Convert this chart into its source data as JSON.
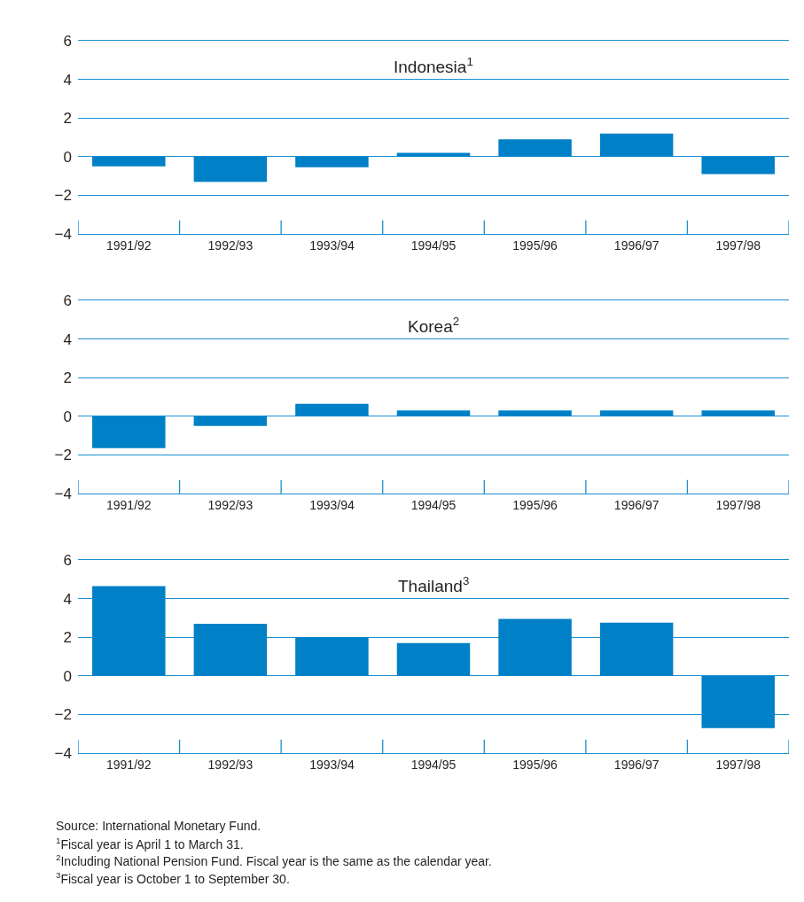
{
  "chart_data": [
    {
      "type": "bar",
      "title": "Indonesia$^{1}$",
      "categories": [
        "1991/92",
        "1992/93",
        "1993/94",
        "1994/95",
        "1995/96",
        "1996/97",
        "1997/98"
      ],
      "values": [
        -0.5,
        -1.3,
        -0.55,
        0.2,
        0.9,
        1.2,
        -0.9
      ],
      "color": "#0080c6",
      "ylim": [
        -4,
        6
      ],
      "yticks": [
        -4,
        -2,
        0,
        2,
        4,
        6
      ],
      "grid": "y"
    },
    {
      "type": "bar",
      "title": "Korea$^{2}$",
      "categories": [
        "1991/92",
        "1992/93",
        "1993/94",
        "1994/95",
        "1995/96",
        "1996/97",
        "1997/98"
      ],
      "values": [
        -1.65,
        -0.5,
        0.65,
        0.3,
        0.3,
        0.3,
        0.3
      ],
      "color": "#0080c6",
      "ylim": [
        -4,
        6
      ],
      "yticks": [
        -4,
        -2,
        0,
        2,
        4,
        6
      ],
      "grid": "y"
    },
    {
      "type": "bar",
      "title": "Thailand$^{3}$",
      "categories": [
        "1991/92",
        "1992/93",
        "1993/94",
        "1994/95",
        "1995/96",
        "1996/97",
        "1997/98"
      ],
      "values": [
        4.65,
        2.7,
        2.0,
        1.7,
        2.95,
        2.75,
        -2.7
      ],
      "color": "#0080c6",
      "ylim": [
        -4,
        6
      ],
      "yticks": [
        -4,
        -2,
        0,
        2,
        4,
        6
      ],
      "grid": "y",
      "annotations": [
        "Source: International Monetary Fund.",
        "$^{1}$Fiscal year is April 1 to March 31.",
        "$^{2}$Including National Pension Fund. Fiscal year is the same as the calendar year.",
        "$^{3}$Fiscal year is October 1 to September 30."
      ]
    }
  ]
}
